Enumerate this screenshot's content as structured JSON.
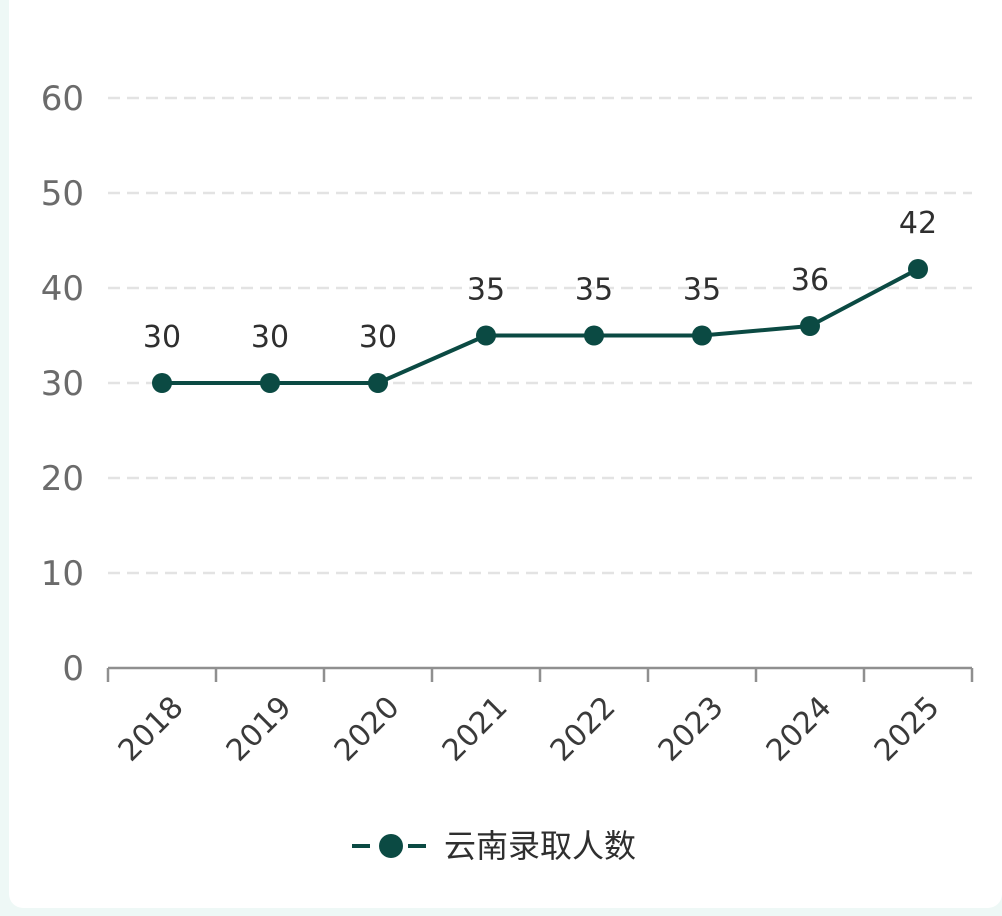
{
  "chart_data": {
    "type": "line",
    "categories": [
      "2018",
      "2019",
      "2020",
      "2021",
      "2022",
      "2023",
      "2024",
      "2025"
    ],
    "series": [
      {
        "name": "云南录取人数",
        "values": [
          30,
          30,
          30,
          35,
          35,
          35,
          36,
          42
        ],
        "color": "#0b4a43"
      }
    ],
    "ylim": [
      0,
      60
    ],
    "yticks": [
      0,
      10,
      20,
      30,
      40,
      50,
      60
    ],
    "grid": "horizontal-dashed",
    "legend": "bottom-center",
    "data_labels": true
  }
}
